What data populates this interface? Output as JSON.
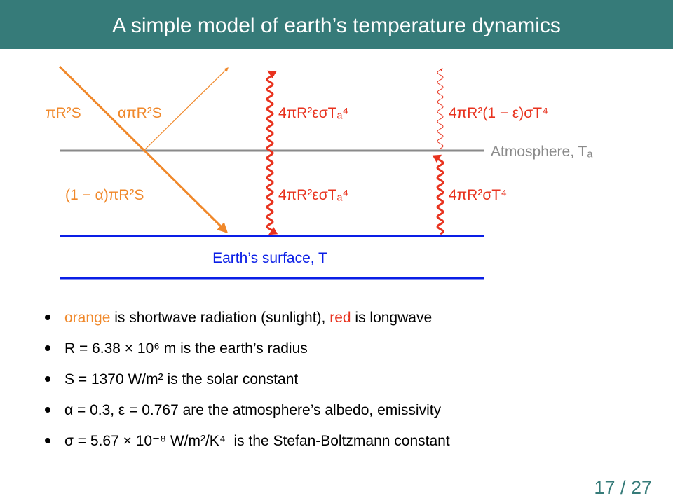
{
  "header": {
    "title": "A simple model of earth’s temperature dynamics"
  },
  "diagram": {
    "shortwave_labels": [
      "πR²S",
      "απR²S",
      "(1 − α)πR²S"
    ],
    "longwave_labels": [
      "4πR²εσTₐ⁴",
      "4πR²(1 − ε)σT⁴",
      "4πR²εσTₐ⁴",
      "4πR²σT⁴"
    ],
    "atmosphere": "Atmosphere, Tₐ",
    "surface": "Earth’s surface, T"
  },
  "bullets": [
    [
      "orange",
      " is shortwave radiation (sunlight), ",
      "red",
      " is longwave"
    ],
    [
      "R = 6.38 × 10⁶ m is the earth’s radius"
    ],
    [
      "S = 1370 W/m² is the solar constant"
    ],
    [
      "α = 0.3, ε = 0.767 are the atmosphere’s albedo, emissivity"
    ],
    [
      "σ = 5.67 × 10⁻⁸ W/m²/K⁴  is the Stefan-Boltzmann constant"
    ]
  ],
  "footer": {
    "page": "17 / 27"
  }
}
